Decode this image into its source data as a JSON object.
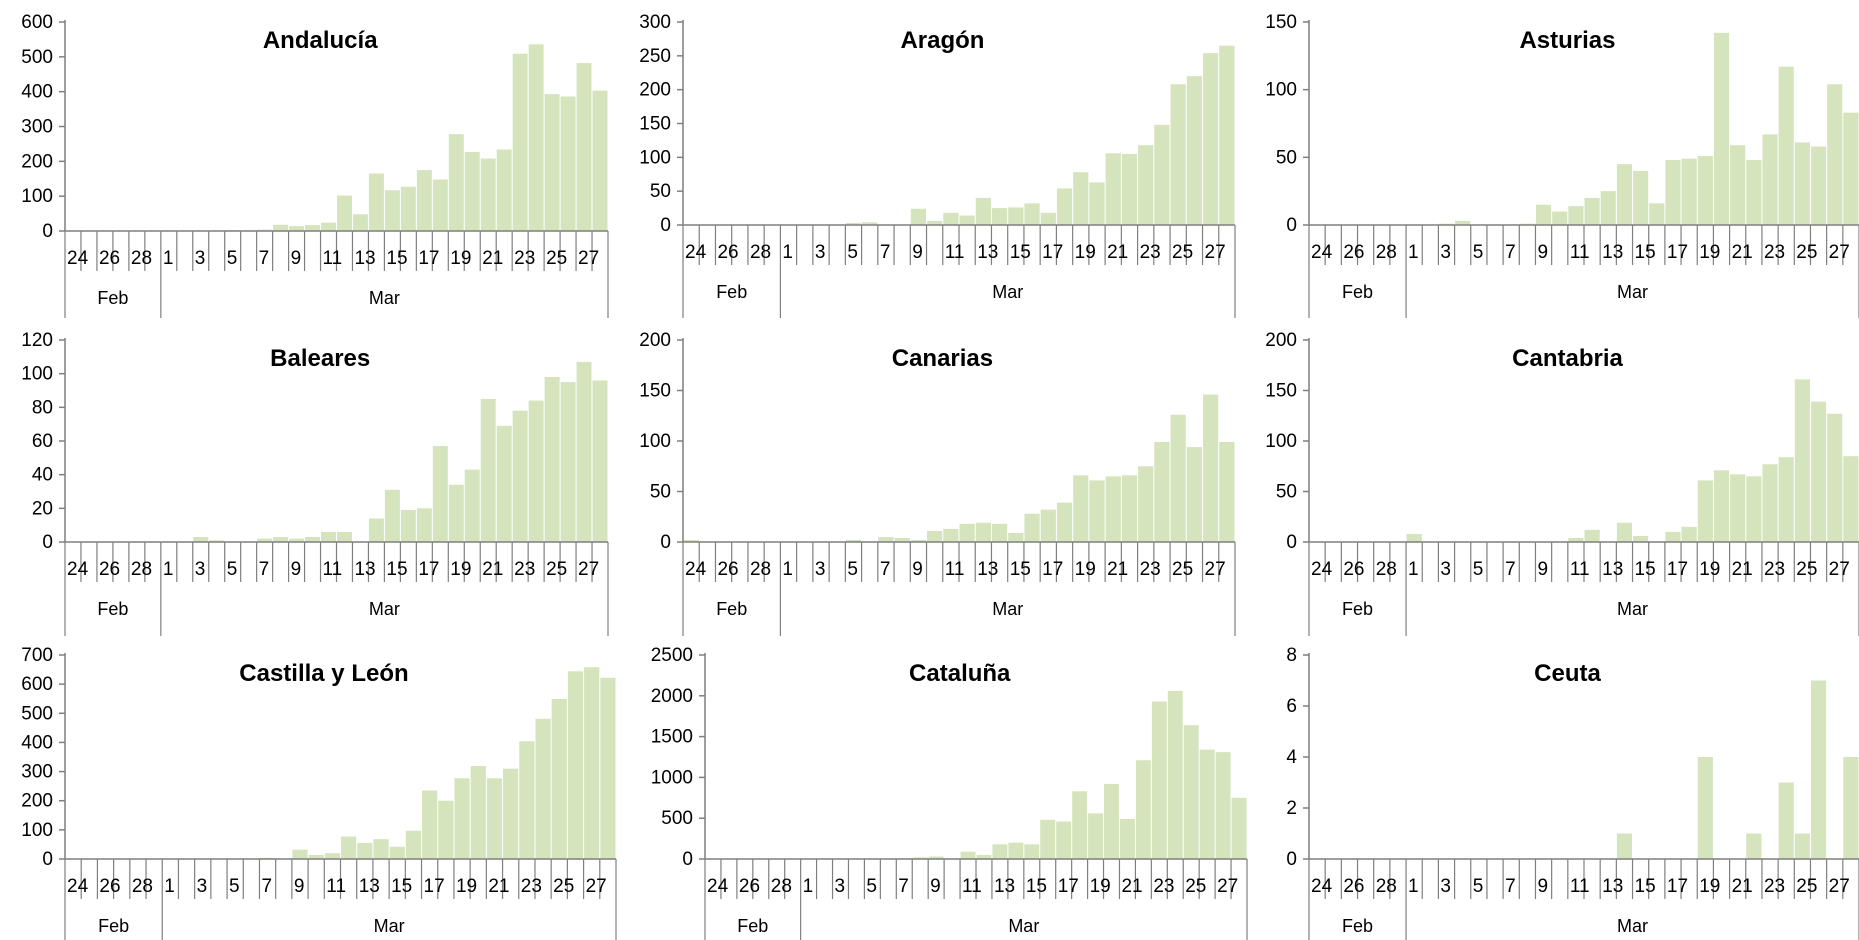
{
  "chart_data": [
    {
      "type": "bar",
      "title": "Andalucía",
      "ylim": [
        0,
        600
      ],
      "yticks": [
        0,
        100,
        200,
        300,
        400,
        500,
        600
      ],
      "bar_color": "#d6e4bd",
      "categories": [
        "24",
        "25",
        "26",
        "27",
        "28",
        "29",
        "1",
        "2",
        "3",
        "4",
        "5",
        "6",
        "7",
        "8",
        "9",
        "10",
        "11",
        "12",
        "13",
        "14",
        "15",
        "16",
        "17",
        "18",
        "19",
        "20",
        "21",
        "22",
        "23",
        "24",
        "25",
        "26",
        "27",
        "28"
      ],
      "values": [
        0,
        0,
        0,
        1,
        0,
        0,
        0,
        0,
        0,
        0,
        3,
        2,
        4,
        18,
        14,
        17,
        24,
        102,
        48,
        165,
        117,
        127,
        175,
        148,
        278,
        227,
        208,
        234,
        509,
        536,
        393,
        386,
        482,
        403
      ],
      "x_tick_labels": [
        "24",
        "26",
        "28",
        "1",
        "3",
        "5",
        "7",
        "9",
        "11",
        "13",
        "15",
        "17",
        "19",
        "21",
        "23",
        "25",
        "27"
      ],
      "months": [
        "Feb",
        "Mar"
      ]
    },
    {
      "type": "bar",
      "title": "Aragón",
      "ylim": [
        0,
        300
      ],
      "yticks": [
        0,
        50,
        100,
        150,
        200,
        250,
        300
      ],
      "bar_color": "#d6e4bd",
      "categories": [
        "24",
        "25",
        "26",
        "27",
        "28",
        "29",
        "1",
        "2",
        "3",
        "4",
        "5",
        "6",
        "7",
        "8",
        "9",
        "10",
        "11",
        "12",
        "13",
        "14",
        "15",
        "16",
        "17",
        "18",
        "19",
        "20",
        "21",
        "22",
        "23",
        "24",
        "25",
        "26",
        "27",
        "28"
      ],
      "values": [
        0,
        0,
        0,
        0,
        0,
        0,
        0,
        0,
        0,
        0,
        3,
        4,
        0,
        0,
        24,
        6,
        18,
        14,
        40,
        25,
        26,
        32,
        18,
        54,
        78,
        63,
        106,
        105,
        118,
        148,
        208,
        220,
        254,
        265
      ],
      "x_tick_labels": [
        "24",
        "26",
        "28",
        "1",
        "3",
        "5",
        "7",
        "9",
        "11",
        "13",
        "15",
        "17",
        "19",
        "21",
        "23",
        "25",
        "27"
      ],
      "months": [
        "Feb",
        "Mar"
      ]
    },
    {
      "type": "bar",
      "title": "Asturias",
      "ylim": [
        0,
        150
      ],
      "yticks": [
        0,
        50,
        100,
        150
      ],
      "bar_color": "#d6e4bd",
      "categories": [
        "24",
        "25",
        "26",
        "27",
        "28",
        "29",
        "1",
        "2",
        "3",
        "4",
        "5",
        "6",
        "7",
        "8",
        "9",
        "10",
        "11",
        "12",
        "13",
        "14",
        "15",
        "16",
        "17",
        "18",
        "19",
        "20",
        "21",
        "22",
        "23",
        "24",
        "25",
        "26",
        "27",
        "28"
      ],
      "values": [
        0,
        0,
        0,
        0,
        0,
        0,
        0,
        0,
        1,
        3,
        0,
        0,
        0,
        1,
        15,
        10,
        14,
        20,
        25,
        45,
        40,
        16,
        48,
        49,
        51,
        142,
        59,
        48,
        67,
        117,
        61,
        58,
        104,
        83
      ],
      "x_tick_labels": [
        "24",
        "26",
        "28",
        "1",
        "3",
        "5",
        "7",
        "9",
        "11",
        "13",
        "15",
        "17",
        "19",
        "21",
        "23",
        "25",
        "27"
      ],
      "months": [
        "Feb",
        "Mar"
      ]
    },
    {
      "type": "bar",
      "title": "Baleares",
      "ylim": [
        0,
        120
      ],
      "yticks": [
        0,
        20,
        40,
        60,
        80,
        100,
        120
      ],
      "bar_color": "#d6e4bd",
      "categories": [
        "24",
        "25",
        "26",
        "27",
        "28",
        "29",
        "1",
        "2",
        "3",
        "4",
        "5",
        "6",
        "7",
        "8",
        "9",
        "10",
        "11",
        "12",
        "13",
        "14",
        "15",
        "16",
        "17",
        "18",
        "19",
        "20",
        "21",
        "22",
        "23",
        "24",
        "25",
        "26",
        "27",
        "28"
      ],
      "values": [
        0,
        0,
        0,
        0,
        0,
        0,
        0,
        0,
        3,
        1,
        0,
        0,
        2,
        3,
        2,
        3,
        6,
        6,
        0,
        14,
        31,
        19,
        20,
        57,
        34,
        43,
        85,
        69,
        78,
        84,
        98,
        95,
        107,
        96
      ],
      "x_tick_labels": [
        "24",
        "26",
        "28",
        "1",
        "3",
        "5",
        "7",
        "9",
        "11",
        "13",
        "15",
        "17",
        "19",
        "21",
        "23",
        "25",
        "27"
      ],
      "months": [
        "Feb",
        "Mar"
      ]
    },
    {
      "type": "bar",
      "title": "Canarias",
      "ylim": [
        0,
        200
      ],
      "yticks": [
        0,
        50,
        100,
        150,
        200
      ],
      "bar_color": "#d6e4bd",
      "categories": [
        "24",
        "25",
        "26",
        "27",
        "28",
        "29",
        "1",
        "2",
        "3",
        "4",
        "5",
        "6",
        "7",
        "8",
        "9",
        "10",
        "11",
        "12",
        "13",
        "14",
        "15",
        "16",
        "17",
        "18",
        "19",
        "20",
        "21",
        "22",
        "23",
        "24",
        "25",
        "26",
        "27",
        "28"
      ],
      "values": [
        2,
        0,
        0,
        0,
        0,
        0,
        0,
        0,
        0,
        0,
        2,
        0,
        5,
        4,
        2,
        11,
        13,
        18,
        19,
        18,
        9,
        28,
        32,
        39,
        66,
        61,
        65,
        66,
        75,
        99,
        126,
        94,
        146,
        99
      ],
      "x_tick_labels": [
        "24",
        "26",
        "28",
        "1",
        "3",
        "5",
        "7",
        "9",
        "11",
        "13",
        "15",
        "17",
        "19",
        "21",
        "23",
        "25",
        "27"
      ],
      "months": [
        "Feb",
        "Mar"
      ]
    },
    {
      "type": "bar",
      "title": "Cantabria",
      "ylim": [
        0,
        200
      ],
      "yticks": [
        0,
        50,
        100,
        150,
        200
      ],
      "bar_color": "#d6e4bd",
      "categories": [
        "24",
        "25",
        "26",
        "27",
        "28",
        "29",
        "1",
        "2",
        "3",
        "4",
        "5",
        "6",
        "7",
        "8",
        "9",
        "10",
        "11",
        "12",
        "13",
        "14",
        "15",
        "16",
        "17",
        "18",
        "19",
        "20",
        "21",
        "22",
        "23",
        "24",
        "25",
        "26",
        "27",
        "28"
      ],
      "values": [
        0,
        0,
        0,
        0,
        0,
        0,
        8,
        0,
        0,
        0,
        0,
        0,
        0,
        0,
        0,
        0,
        4,
        12,
        0,
        19,
        6,
        0,
        10,
        15,
        61,
        71,
        67,
        65,
        77,
        84,
        161,
        139,
        127,
        85
      ],
      "x_tick_labels": [
        "24",
        "26",
        "28",
        "1",
        "3",
        "5",
        "7",
        "9",
        "11",
        "13",
        "15",
        "17",
        "19",
        "21",
        "23",
        "25",
        "27"
      ],
      "months": [
        "Feb",
        "Mar"
      ]
    },
    {
      "type": "bar",
      "title": "Castilla y León",
      "ylim": [
        0,
        700
      ],
      "yticks": [
        0,
        100,
        200,
        300,
        400,
        500,
        600,
        700
      ],
      "bar_color": "#d6e4bd",
      "categories": [
        "24",
        "25",
        "26",
        "27",
        "28",
        "29",
        "1",
        "2",
        "3",
        "4",
        "5",
        "6",
        "7",
        "8",
        "9",
        "10",
        "11",
        "12",
        "13",
        "14",
        "15",
        "16",
        "17",
        "18",
        "19",
        "20",
        "21",
        "22",
        "23",
        "24",
        "25",
        "26",
        "27",
        "28"
      ],
      "values": [
        0,
        0,
        0,
        0,
        0,
        0,
        0,
        0,
        0,
        0,
        0,
        0,
        4,
        0,
        32,
        14,
        20,
        77,
        55,
        68,
        42,
        97,
        235,
        200,
        277,
        319,
        277,
        310,
        404,
        481,
        549,
        644,
        658,
        622
      ],
      "x_tick_labels": [
        "24",
        "26",
        "28",
        "1",
        "3",
        "5",
        "7",
        "9",
        "11",
        "13",
        "15",
        "17",
        "19",
        "21",
        "23",
        "25",
        "27"
      ],
      "months": [
        "Feb",
        "Mar"
      ]
    },
    {
      "type": "bar",
      "title": "Cataluña",
      "ylim": [
        0,
        2500
      ],
      "yticks": [
        0,
        500,
        1000,
        1500,
        2000,
        2500
      ],
      "bar_color": "#d6e4bd",
      "categories": [
        "24",
        "25",
        "26",
        "27",
        "28",
        "29",
        "1",
        "2",
        "3",
        "4",
        "5",
        "6",
        "7",
        "8",
        "9",
        "10",
        "11",
        "12",
        "13",
        "14",
        "15",
        "16",
        "17",
        "18",
        "19",
        "20",
        "21",
        "22",
        "23",
        "24",
        "25",
        "26",
        "27",
        "28"
      ],
      "values": [
        0,
        0,
        0,
        0,
        0,
        0,
        0,
        0,
        0,
        0,
        0,
        0,
        10,
        20,
        30,
        10,
        90,
        50,
        180,
        200,
        180,
        480,
        460,
        830,
        560,
        920,
        490,
        1210,
        1930,
        2060,
        1640,
        1340,
        1310,
        750
      ],
      "x_tick_labels": [
        "24",
        "26",
        "28",
        "1",
        "3",
        "5",
        "7",
        "9",
        "11",
        "13",
        "15",
        "17",
        "19",
        "21",
        "23",
        "25",
        "27"
      ],
      "months": [
        "Feb",
        "Mar"
      ]
    },
    {
      "type": "bar",
      "title": "Ceuta",
      "ylim": [
        0,
        8
      ],
      "yticks": [
        0,
        2,
        4,
        6,
        8
      ],
      "bar_color": "#d6e4bd",
      "categories": [
        "24",
        "25",
        "26",
        "27",
        "28",
        "29",
        "1",
        "2",
        "3",
        "4",
        "5",
        "6",
        "7",
        "8",
        "9",
        "10",
        "11",
        "12",
        "13",
        "14",
        "15",
        "16",
        "17",
        "18",
        "19",
        "20",
        "21",
        "22",
        "23",
        "24",
        "25",
        "26",
        "27",
        "28"
      ],
      "values": [
        0,
        0,
        0,
        0,
        0,
        0,
        0,
        0,
        0,
        0,
        0,
        0,
        0,
        0,
        0,
        0,
        0,
        0,
        0,
        1,
        0,
        0,
        0,
        0,
        4,
        0,
        0,
        1,
        0,
        3,
        1,
        7,
        0,
        4
      ],
      "x_tick_labels": [
        "24",
        "26",
        "28",
        "1",
        "3",
        "5",
        "7",
        "9",
        "11",
        "13",
        "15",
        "17",
        "19",
        "21",
        "23",
        "25",
        "27"
      ],
      "months": [
        "Feb",
        "Mar"
      ]
    }
  ]
}
